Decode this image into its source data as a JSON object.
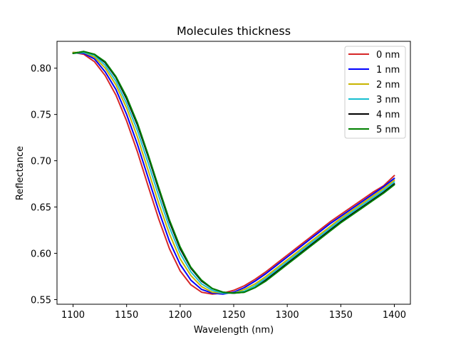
{
  "chart_data": {
    "type": "line",
    "title": "Molecules thickness",
    "xlabel": "Wavelength (nm)",
    "ylabel": "Reflectance",
    "xlim": [
      1085,
      1415
    ],
    "ylim": [
      0.545,
      0.829
    ],
    "xticks": [
      1100,
      1150,
      1200,
      1250,
      1300,
      1350,
      1400
    ],
    "yticks": [
      0.55,
      0.6,
      0.65,
      0.7,
      0.75,
      0.8
    ],
    "ytick_labels": [
      "0.55",
      "0.60",
      "0.65",
      "0.70",
      "0.75",
      "0.80"
    ],
    "grid": false,
    "legend_position": "top-right",
    "x": [
      1100,
      1110,
      1120,
      1130,
      1140,
      1150,
      1160,
      1170,
      1180,
      1190,
      1200,
      1210,
      1220,
      1230,
      1240,
      1250,
      1260,
      1270,
      1280,
      1290,
      1300,
      1310,
      1320,
      1330,
      1340,
      1350,
      1360,
      1370,
      1380,
      1390,
      1400
    ],
    "series": [
      {
        "name": "0 nm",
        "color": "#d62728",
        "values": [
          0.817,
          0.815,
          0.807,
          0.792,
          0.771,
          0.743,
          0.71,
          0.673,
          0.637,
          0.605,
          0.581,
          0.566,
          0.558,
          0.556,
          0.557,
          0.56,
          0.565,
          0.572,
          0.58,
          0.589,
          0.598,
          0.607,
          0.616,
          0.625,
          0.634,
          0.642,
          0.65,
          0.658,
          0.666,
          0.673,
          0.684
        ]
      },
      {
        "name": "1 nm",
        "color": "#0000ff",
        "values": [
          0.817,
          0.816,
          0.81,
          0.796,
          0.777,
          0.75,
          0.718,
          0.682,
          0.646,
          0.613,
          0.588,
          0.571,
          0.561,
          0.557,
          0.556,
          0.558,
          0.563,
          0.57,
          0.578,
          0.587,
          0.596,
          0.605,
          0.614,
          0.623,
          0.632,
          0.64,
          0.648,
          0.656,
          0.664,
          0.672,
          0.681
        ]
      },
      {
        "name": "2 nm",
        "color": "#c8b400",
        "values": [
          0.817,
          0.817,
          0.812,
          0.8,
          0.782,
          0.757,
          0.726,
          0.69,
          0.654,
          0.621,
          0.594,
          0.576,
          0.564,
          0.558,
          0.557,
          0.557,
          0.561,
          0.567,
          0.575,
          0.584,
          0.593,
          0.602,
          0.611,
          0.62,
          0.629,
          0.638,
          0.646,
          0.654,
          0.662,
          0.67,
          0.679
        ]
      },
      {
        "name": "3 nm",
        "color": "#17becf",
        "values": [
          0.816,
          0.817,
          0.814,
          0.803,
          0.786,
          0.762,
          0.733,
          0.698,
          0.662,
          0.628,
          0.6,
          0.58,
          0.567,
          0.56,
          0.557,
          0.557,
          0.559,
          0.565,
          0.573,
          0.582,
          0.591,
          0.6,
          0.609,
          0.618,
          0.627,
          0.636,
          0.644,
          0.652,
          0.66,
          0.668,
          0.677
        ]
      },
      {
        "name": "4 nm",
        "color": "#000000",
        "values": [
          0.816,
          0.818,
          0.815,
          0.806,
          0.79,
          0.767,
          0.739,
          0.705,
          0.669,
          0.634,
          0.605,
          0.584,
          0.57,
          0.562,
          0.558,
          0.557,
          0.558,
          0.563,
          0.571,
          0.58,
          0.589,
          0.598,
          0.607,
          0.616,
          0.625,
          0.634,
          0.642,
          0.65,
          0.658,
          0.666,
          0.675
        ]
      },
      {
        "name": "5 nm",
        "color": "#008000",
        "values": [
          0.816,
          0.818,
          0.815,
          0.807,
          0.791,
          0.769,
          0.741,
          0.707,
          0.671,
          0.636,
          0.607,
          0.585,
          0.571,
          0.562,
          0.558,
          0.557,
          0.558,
          0.563,
          0.57,
          0.579,
          0.588,
          0.597,
          0.606,
          0.615,
          0.624,
          0.633,
          0.641,
          0.649,
          0.657,
          0.665,
          0.674
        ]
      }
    ]
  }
}
